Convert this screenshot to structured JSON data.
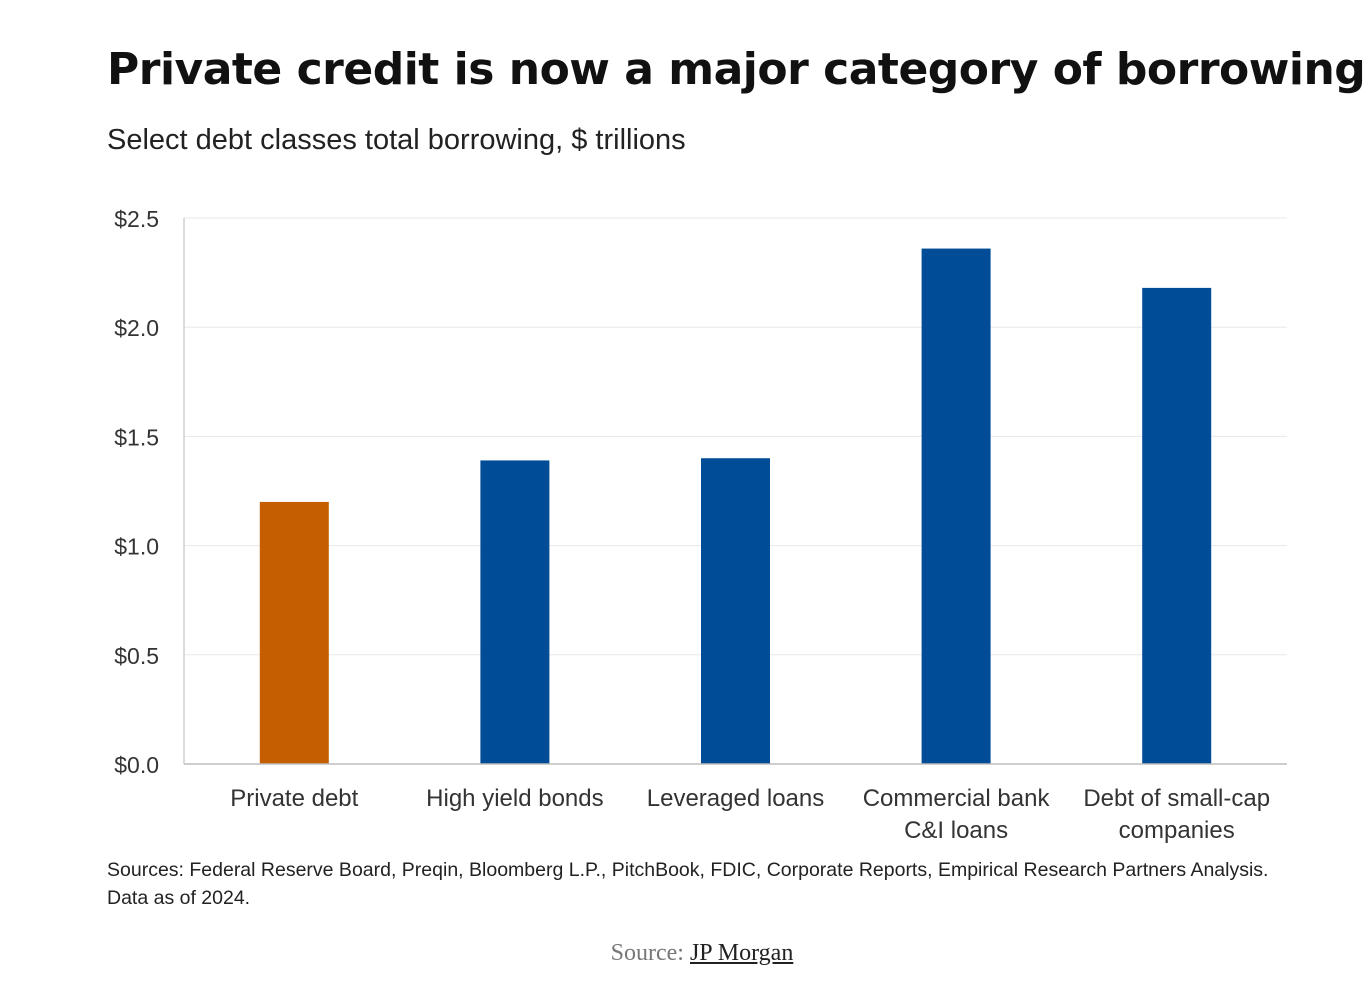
{
  "chart_data": {
    "type": "bar",
    "title": "Private credit is now a major category of borrowing",
    "subtitle": "Select debt classes total borrowing, $ trillions",
    "categories": [
      [
        "Private debt"
      ],
      [
        "High yield bonds"
      ],
      [
        "Leveraged loans"
      ],
      [
        "Commercial bank",
        "C&I loans"
      ],
      [
        "Debt of small-cap",
        "companies"
      ]
    ],
    "values": [
      1.2,
      1.39,
      1.4,
      2.36,
      2.18
    ],
    "colors": [
      "#c55e00",
      "#004c97",
      "#004c97",
      "#004c97",
      "#004c97"
    ],
    "ylim": [
      0,
      2.5
    ],
    "yticks": [
      0,
      0.5,
      1.0,
      1.5,
      2.0,
      2.5
    ],
    "ytick_labels": [
      "$0.0",
      "$0.5",
      "$1.0",
      "$1.5",
      "$2.0",
      "$2.5"
    ],
    "grid": true,
    "notes": "Sources: Federal Reserve Board, Preqin, Bloomberg L.P., PitchBook, FDIC, Corporate Reports, Empirical Research Partners Analysis. Data as of 2024."
  },
  "source": {
    "prefix": "Source:",
    "link_text": "JP Morgan"
  }
}
